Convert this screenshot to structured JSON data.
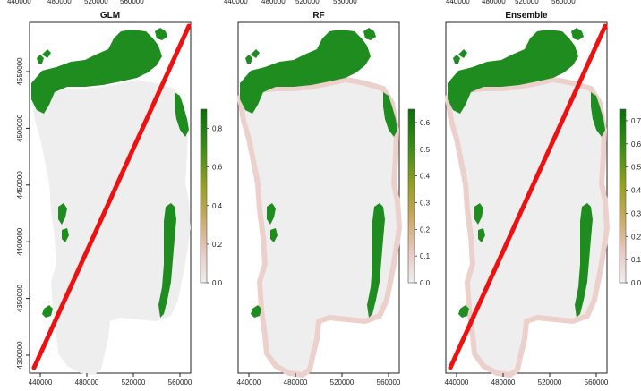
{
  "figure": {
    "top_tick_labels": [
      "440000",
      "480000",
      "520000",
      "560000"
    ],
    "panels": [
      {
        "title": "GLM",
        "x_ticks": [
          "440000",
          "480000",
          "520000",
          "560000"
        ],
        "y_ticks": [
          "4300000",
          "4350000",
          "4400000",
          "4450000",
          "4500000",
          "4550000"
        ],
        "legend": {
          "ticks": [
            "0.0",
            "0.2",
            "0.4",
            "0.6",
            "0.8"
          ],
          "range": [
            0,
            0.9
          ]
        },
        "has_red_line": true
      },
      {
        "title": "RF",
        "x_ticks": [
          "440000",
          "480000",
          "520000",
          "560000"
        ],
        "y_ticks": [],
        "legend": {
          "ticks": [
            "0.0",
            "0.1",
            "0.2",
            "0.3",
            "0.4",
            "0.5",
            "0.6"
          ],
          "range": [
            0,
            0.65
          ]
        },
        "has_red_line": false
      },
      {
        "title": "Ensemble",
        "x_ticks": [
          "440000",
          "480000",
          "520000",
          "560000"
        ],
        "y_ticks": [],
        "legend": {
          "ticks": [
            "0.0",
            "0.1",
            "0.2",
            "0.3",
            "0.4",
            "0.5",
            "0.6",
            "0.7"
          ],
          "range": [
            0,
            0.75
          ]
        },
        "has_red_line": true
      }
    ],
    "colors": {
      "land": "#eeeeee",
      "habitat": "#1e8c1e",
      "habitat_dark": "#0a6e0a",
      "low_prob": "#ecd0cc",
      "line": "#ee1111",
      "frame": "#222222"
    }
  }
}
